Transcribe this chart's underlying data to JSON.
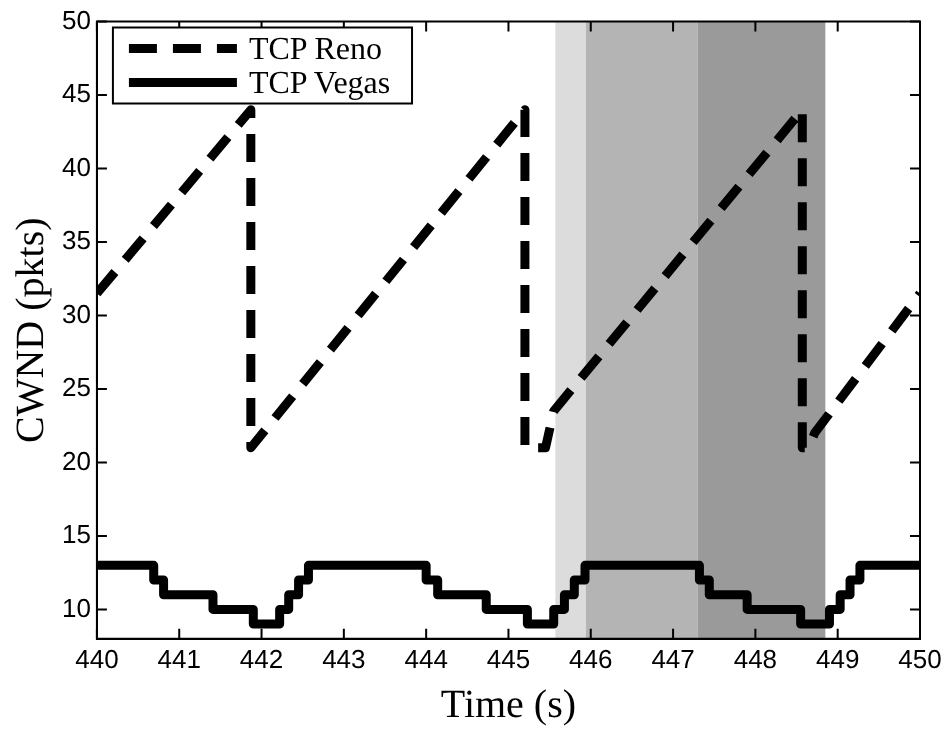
{
  "chart_data": {
    "type": "line",
    "xlabel": "Time (s)",
    "ylabel": "CWND (pkts)",
    "xlim": [
      440,
      450
    ],
    "xticks": [
      440,
      441,
      442,
      443,
      444,
      445,
      446,
      447,
      448,
      449,
      450
    ],
    "ylim": [
      8,
      50
    ],
    "yticks": [
      10,
      15,
      20,
      25,
      30,
      35,
      40,
      45,
      50
    ],
    "grid": false,
    "legend": "top left",
    "bands": [
      {
        "axis": "x",
        "from": 445.57,
        "to": 445.94,
        "color": "#dcdcdc"
      },
      {
        "axis": "x",
        "from": 445.94,
        "to": 447.3,
        "color": "#b4b4b4"
      },
      {
        "axis": "x",
        "from": 447.3,
        "to": 448.85,
        "color": "#9a9a9a"
      }
    ],
    "series": [
      {
        "name": "TCP Reno",
        "color": "#000000",
        "line_style": "dashed",
        "x": [
          440,
          441.87,
          441.87,
          445.2,
          445.2,
          445.45,
          445.55,
          448.57,
          448.57,
          448.65,
          448.72,
          450
        ],
        "values": [
          31.5,
          44,
          21,
          44,
          21,
          21,
          23.5,
          44,
          21,
          21,
          22,
          31.5
        ]
      },
      {
        "name": "TCP Vegas",
        "type": "step",
        "color": "#000000",
        "line_style": "solid",
        "x": [
          440,
          440.69,
          440.81,
          441.41,
          441.9,
          442.22,
          442.33,
          442.45,
          442.57,
          444.0,
          444.14,
          444.73,
          445.23,
          445.55,
          445.68,
          445.8,
          445.93,
          447.32,
          447.44,
          447.9,
          448.55,
          448.9,
          449.03,
          449.15,
          449.27,
          450
        ],
        "values": [
          13,
          12,
          11,
          10,
          9,
          10,
          11,
          12,
          13,
          12,
          11,
          10,
          9,
          10,
          11,
          12,
          13,
          12,
          11,
          10,
          9,
          10,
          11,
          12,
          13,
          13
        ]
      }
    ]
  }
}
